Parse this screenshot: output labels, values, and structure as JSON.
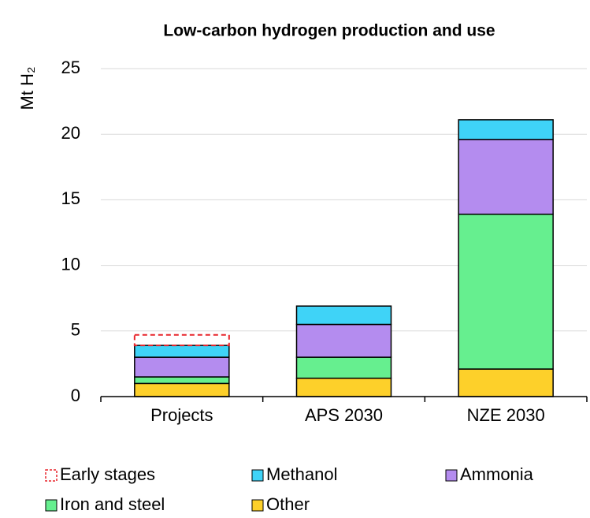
{
  "chart_data": {
    "type": "stacked_bar",
    "title": "Low-carbon hydrogen production and use",
    "y_label": "Mt H₂",
    "categories": [
      "Projects",
      "APS 2030",
      "NZE 2030"
    ],
    "series": [
      {
        "name": "Early stages",
        "color": "#e8252b",
        "style": "dashed",
        "values": [
          0.8,
          null,
          null
        ]
      },
      {
        "name": "Methanol",
        "color": "#3fd3f7",
        "values": [
          0.9,
          1.4,
          1.5
        ]
      },
      {
        "name": "Ammonia",
        "color": "#b48cef",
        "values": [
          1.5,
          2.5,
          5.7
        ]
      },
      {
        "name": "Iron and steel",
        "color": "#66ef8f",
        "values": [
          0.5,
          1.6,
          11.8
        ]
      },
      {
        "name": "Other",
        "color": "#fdd02a",
        "values": [
          1.0,
          1.4,
          2.1
        ]
      }
    ],
    "ylim": [
      0,
      25
    ],
    "yticks": [
      0,
      5,
      10,
      15,
      20,
      25
    ],
    "grid": true
  }
}
